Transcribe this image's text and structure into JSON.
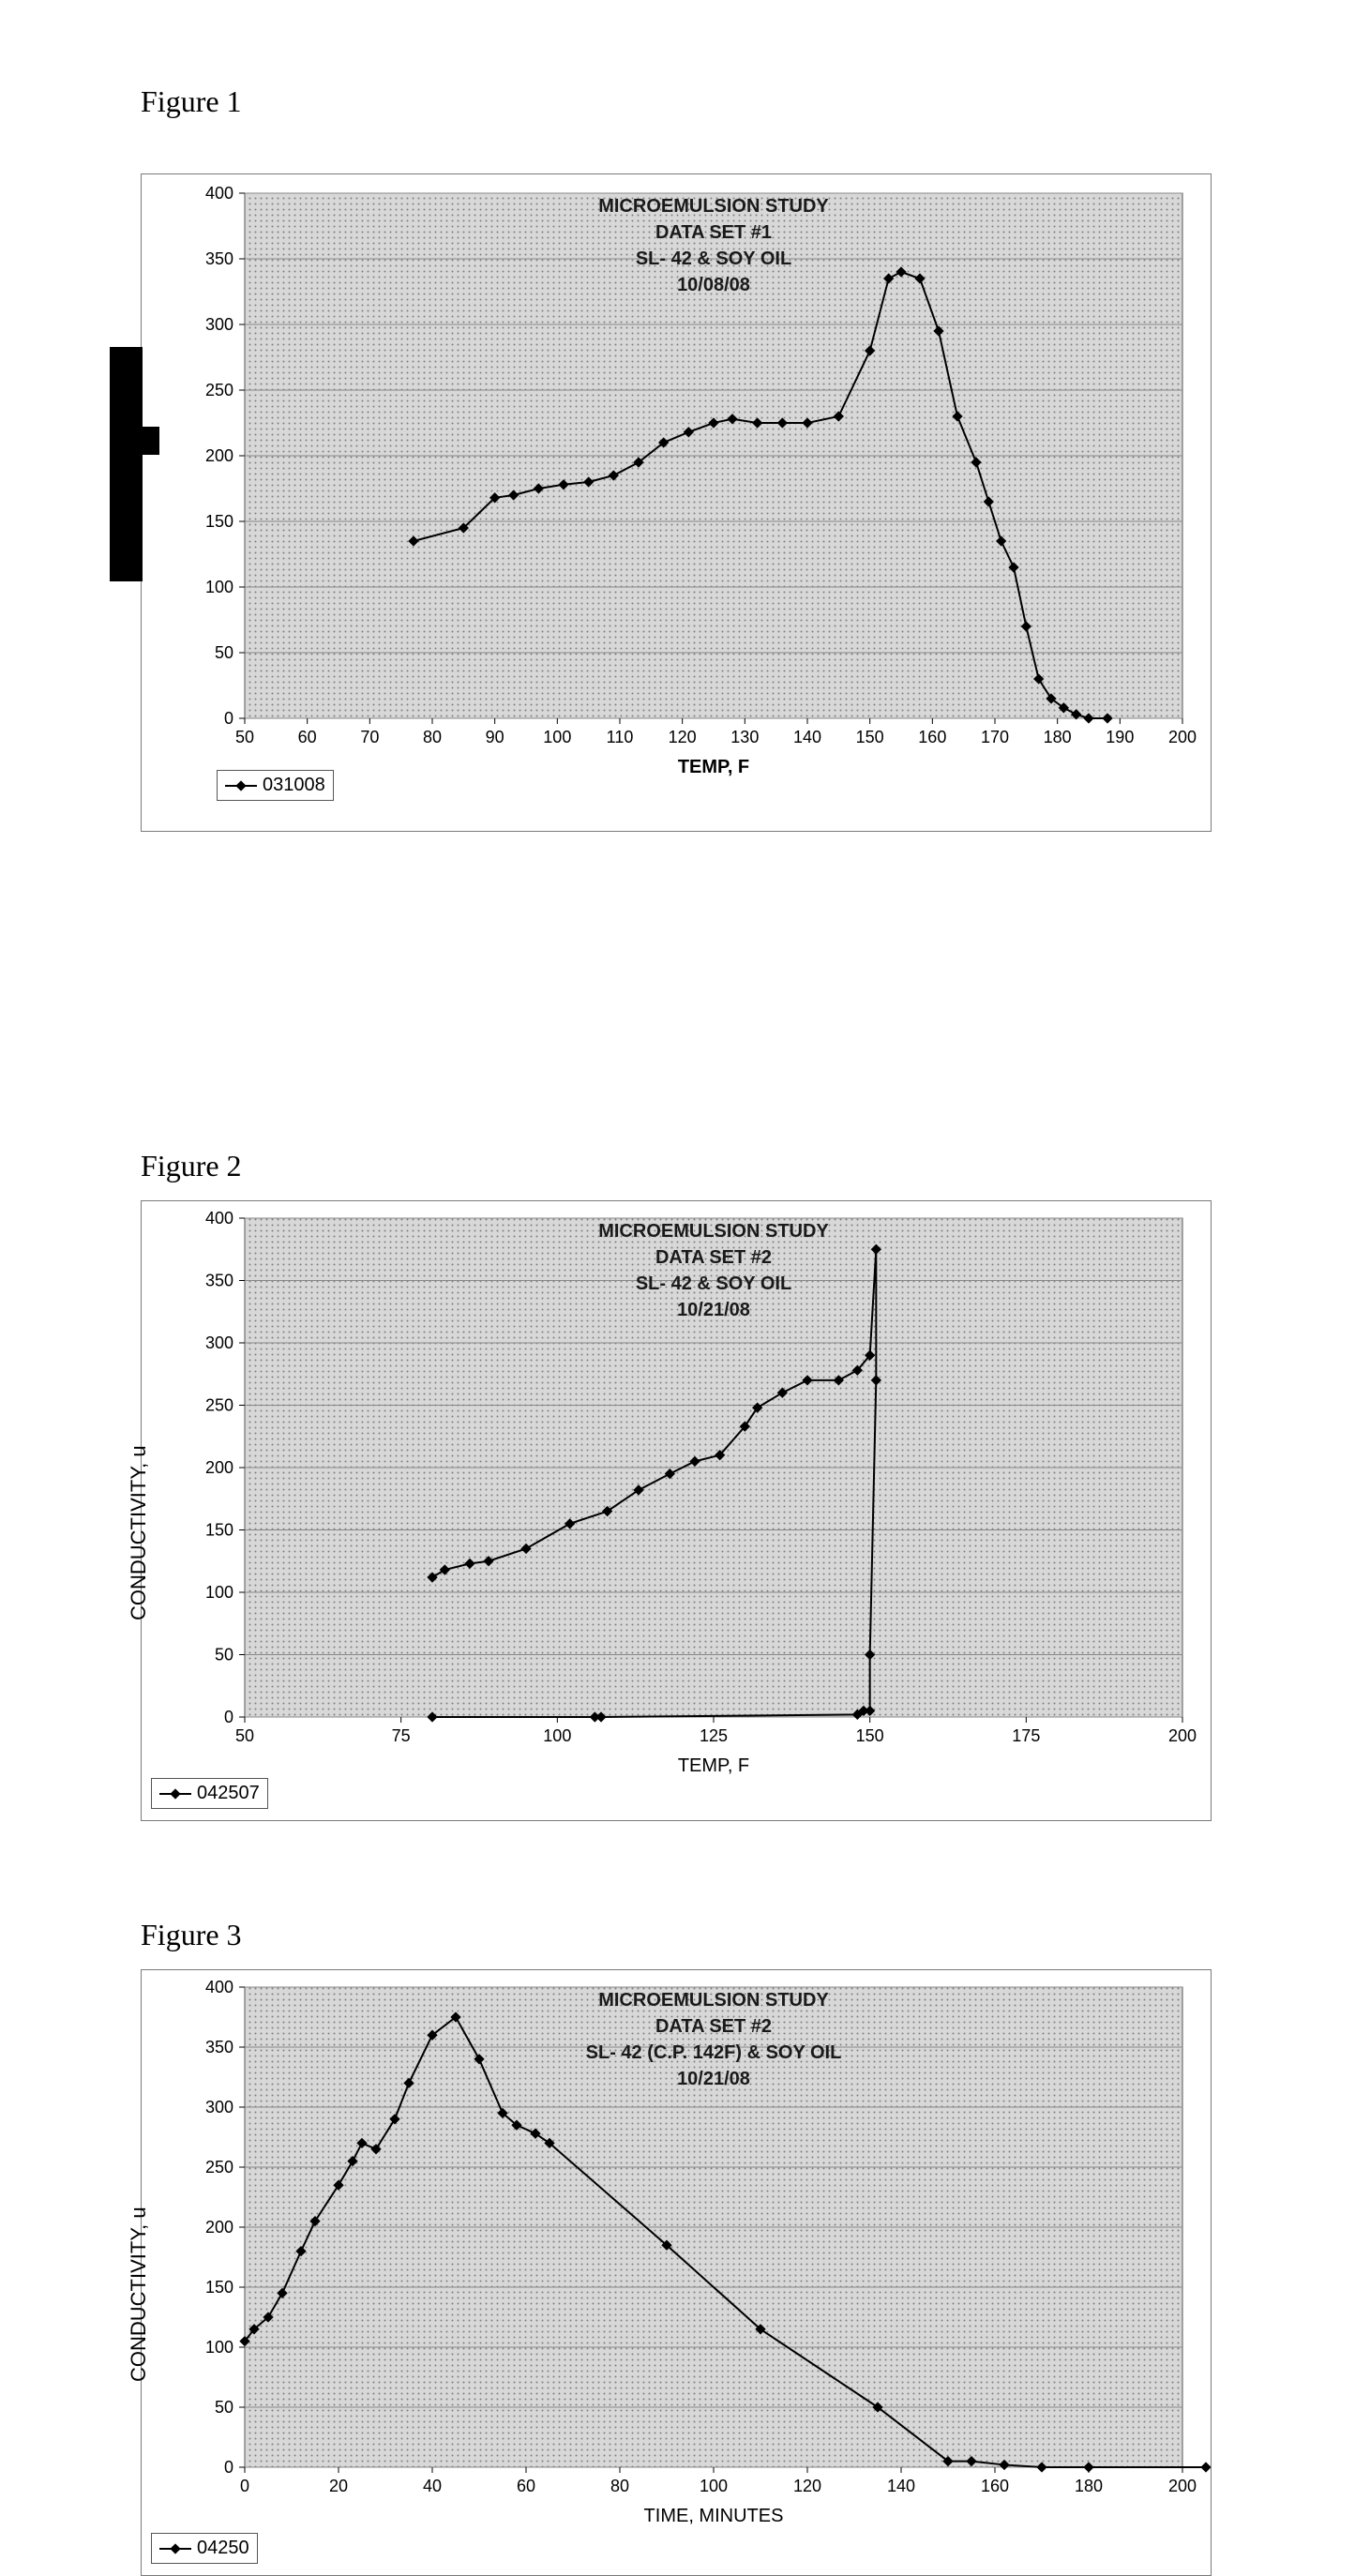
{
  "figures": {
    "fig1": {
      "label": "Figure 1",
      "title_lines": [
        "MICROEMULSION STUDY",
        "DATA SET #1",
        "SL- 42 & SOY OIL",
        "10/08/08"
      ],
      "xlabel": "TEMP, F",
      "legend": "031008",
      "type": "line-scatter",
      "series_color": "#000000",
      "marker": "diamond",
      "marker_size": 8,
      "line_width": 2,
      "plot_bg_pattern": "dots",
      "plot_bg_color": "#c0c0c0",
      "grid_color": "#888888",
      "xlim": [
        50,
        200
      ],
      "ylim": [
        0,
        400
      ],
      "xtick_step": 10,
      "ytick_step": 50,
      "tick_fontsize": 18,
      "title_fontsize": 20,
      "xlabel_fontsize": 20,
      "data": [
        [
          77,
          135
        ],
        [
          85,
          145
        ],
        [
          90,
          168
        ],
        [
          93,
          170
        ],
        [
          97,
          175
        ],
        [
          101,
          178
        ],
        [
          105,
          180
        ],
        [
          109,
          185
        ],
        [
          113,
          195
        ],
        [
          117,
          210
        ],
        [
          121,
          218
        ],
        [
          125,
          225
        ],
        [
          128,
          228
        ],
        [
          132,
          225
        ],
        [
          136,
          225
        ],
        [
          140,
          225
        ],
        [
          145,
          230
        ],
        [
          150,
          280
        ],
        [
          153,
          335
        ],
        [
          155,
          340
        ],
        [
          158,
          335
        ],
        [
          161,
          295
        ],
        [
          164,
          230
        ],
        [
          167,
          195
        ],
        [
          169,
          165
        ],
        [
          171,
          135
        ],
        [
          173,
          115
        ],
        [
          175,
          70
        ],
        [
          177,
          30
        ],
        [
          179,
          15
        ],
        [
          181,
          8
        ],
        [
          183,
          3
        ],
        [
          185,
          0
        ],
        [
          188,
          0
        ]
      ]
    },
    "fig2": {
      "label": "Figure 2",
      "title_lines": [
        "MICROEMULSION STUDY",
        "DATA SET #2",
        "SL- 42 & SOY OIL",
        "10/21/08"
      ],
      "xlabel": "TEMP, F",
      "ylabel": "CONDUCTIVITY, u",
      "legend": "042507",
      "type": "line-scatter",
      "series_color": "#000000",
      "marker": "diamond",
      "marker_size": 8,
      "line_width": 2,
      "plot_bg_pattern": "dots",
      "plot_bg_color": "#c0c0c0",
      "grid_color": "#888888",
      "xlim": [
        50,
        200
      ],
      "ylim": [
        0,
        400
      ],
      "xtick_step": 25,
      "ytick_step": 50,
      "tick_fontsize": 18,
      "title_fontsize": 20,
      "xlabel_fontsize": 20,
      "data": [
        [
          80,
          112
        ],
        [
          82,
          118
        ],
        [
          86,
          123
        ],
        [
          89,
          125
        ],
        [
          95,
          135
        ],
        [
          102,
          155
        ],
        [
          108,
          165
        ],
        [
          113,
          182
        ],
        [
          118,
          195
        ],
        [
          122,
          205
        ],
        [
          126,
          210
        ],
        [
          130,
          233
        ],
        [
          132,
          248
        ],
        [
          136,
          260
        ],
        [
          140,
          270
        ],
        [
          145,
          270
        ],
        [
          148,
          278
        ],
        [
          150,
          290
        ],
        [
          151,
          375
        ],
        [
          151,
          270
        ],
        [
          150,
          50
        ],
        [
          150,
          5
        ],
        [
          149,
          5
        ],
        [
          148,
          2
        ],
        [
          107,
          0
        ],
        [
          106,
          0
        ],
        [
          80,
          0
        ]
      ]
    },
    "fig3": {
      "label": "Figure 3",
      "title_lines": [
        "MICROEMULSION STUDY",
        "DATA SET #2",
        "SL- 42 (C.P. 142F) & SOY OIL",
        "10/21/08"
      ],
      "xlabel": "TIME, MINUTES",
      "ylabel": "CONDUCTIVITY, u",
      "legend": "04250",
      "type": "line-scatter",
      "series_color": "#000000",
      "marker": "diamond",
      "marker_size": 8,
      "line_width": 2,
      "plot_bg_pattern": "dots",
      "plot_bg_color": "#c0c0c0",
      "grid_color": "#888888",
      "xlim": [
        0,
        200
      ],
      "ylim": [
        0,
        400
      ],
      "xtick_step": 20,
      "ytick_step": 50,
      "tick_fontsize": 18,
      "title_fontsize": 20,
      "xlabel_fontsize": 20,
      "data": [
        [
          0,
          105
        ],
        [
          2,
          115
        ],
        [
          5,
          125
        ],
        [
          8,
          145
        ],
        [
          12,
          180
        ],
        [
          15,
          205
        ],
        [
          20,
          235
        ],
        [
          23,
          255
        ],
        [
          25,
          270
        ],
        [
          28,
          265
        ],
        [
          32,
          290
        ],
        [
          35,
          320
        ],
        [
          40,
          360
        ],
        [
          45,
          375
        ],
        [
          50,
          340
        ],
        [
          55,
          295
        ],
        [
          58,
          285
        ],
        [
          62,
          278
        ],
        [
          65,
          270
        ],
        [
          90,
          185
        ],
        [
          110,
          115
        ],
        [
          135,
          50
        ],
        [
          150,
          5
        ],
        [
          155,
          5
        ],
        [
          162,
          2
        ],
        [
          170,
          0
        ],
        [
          180,
          0
        ],
        [
          205,
          0
        ]
      ]
    }
  }
}
